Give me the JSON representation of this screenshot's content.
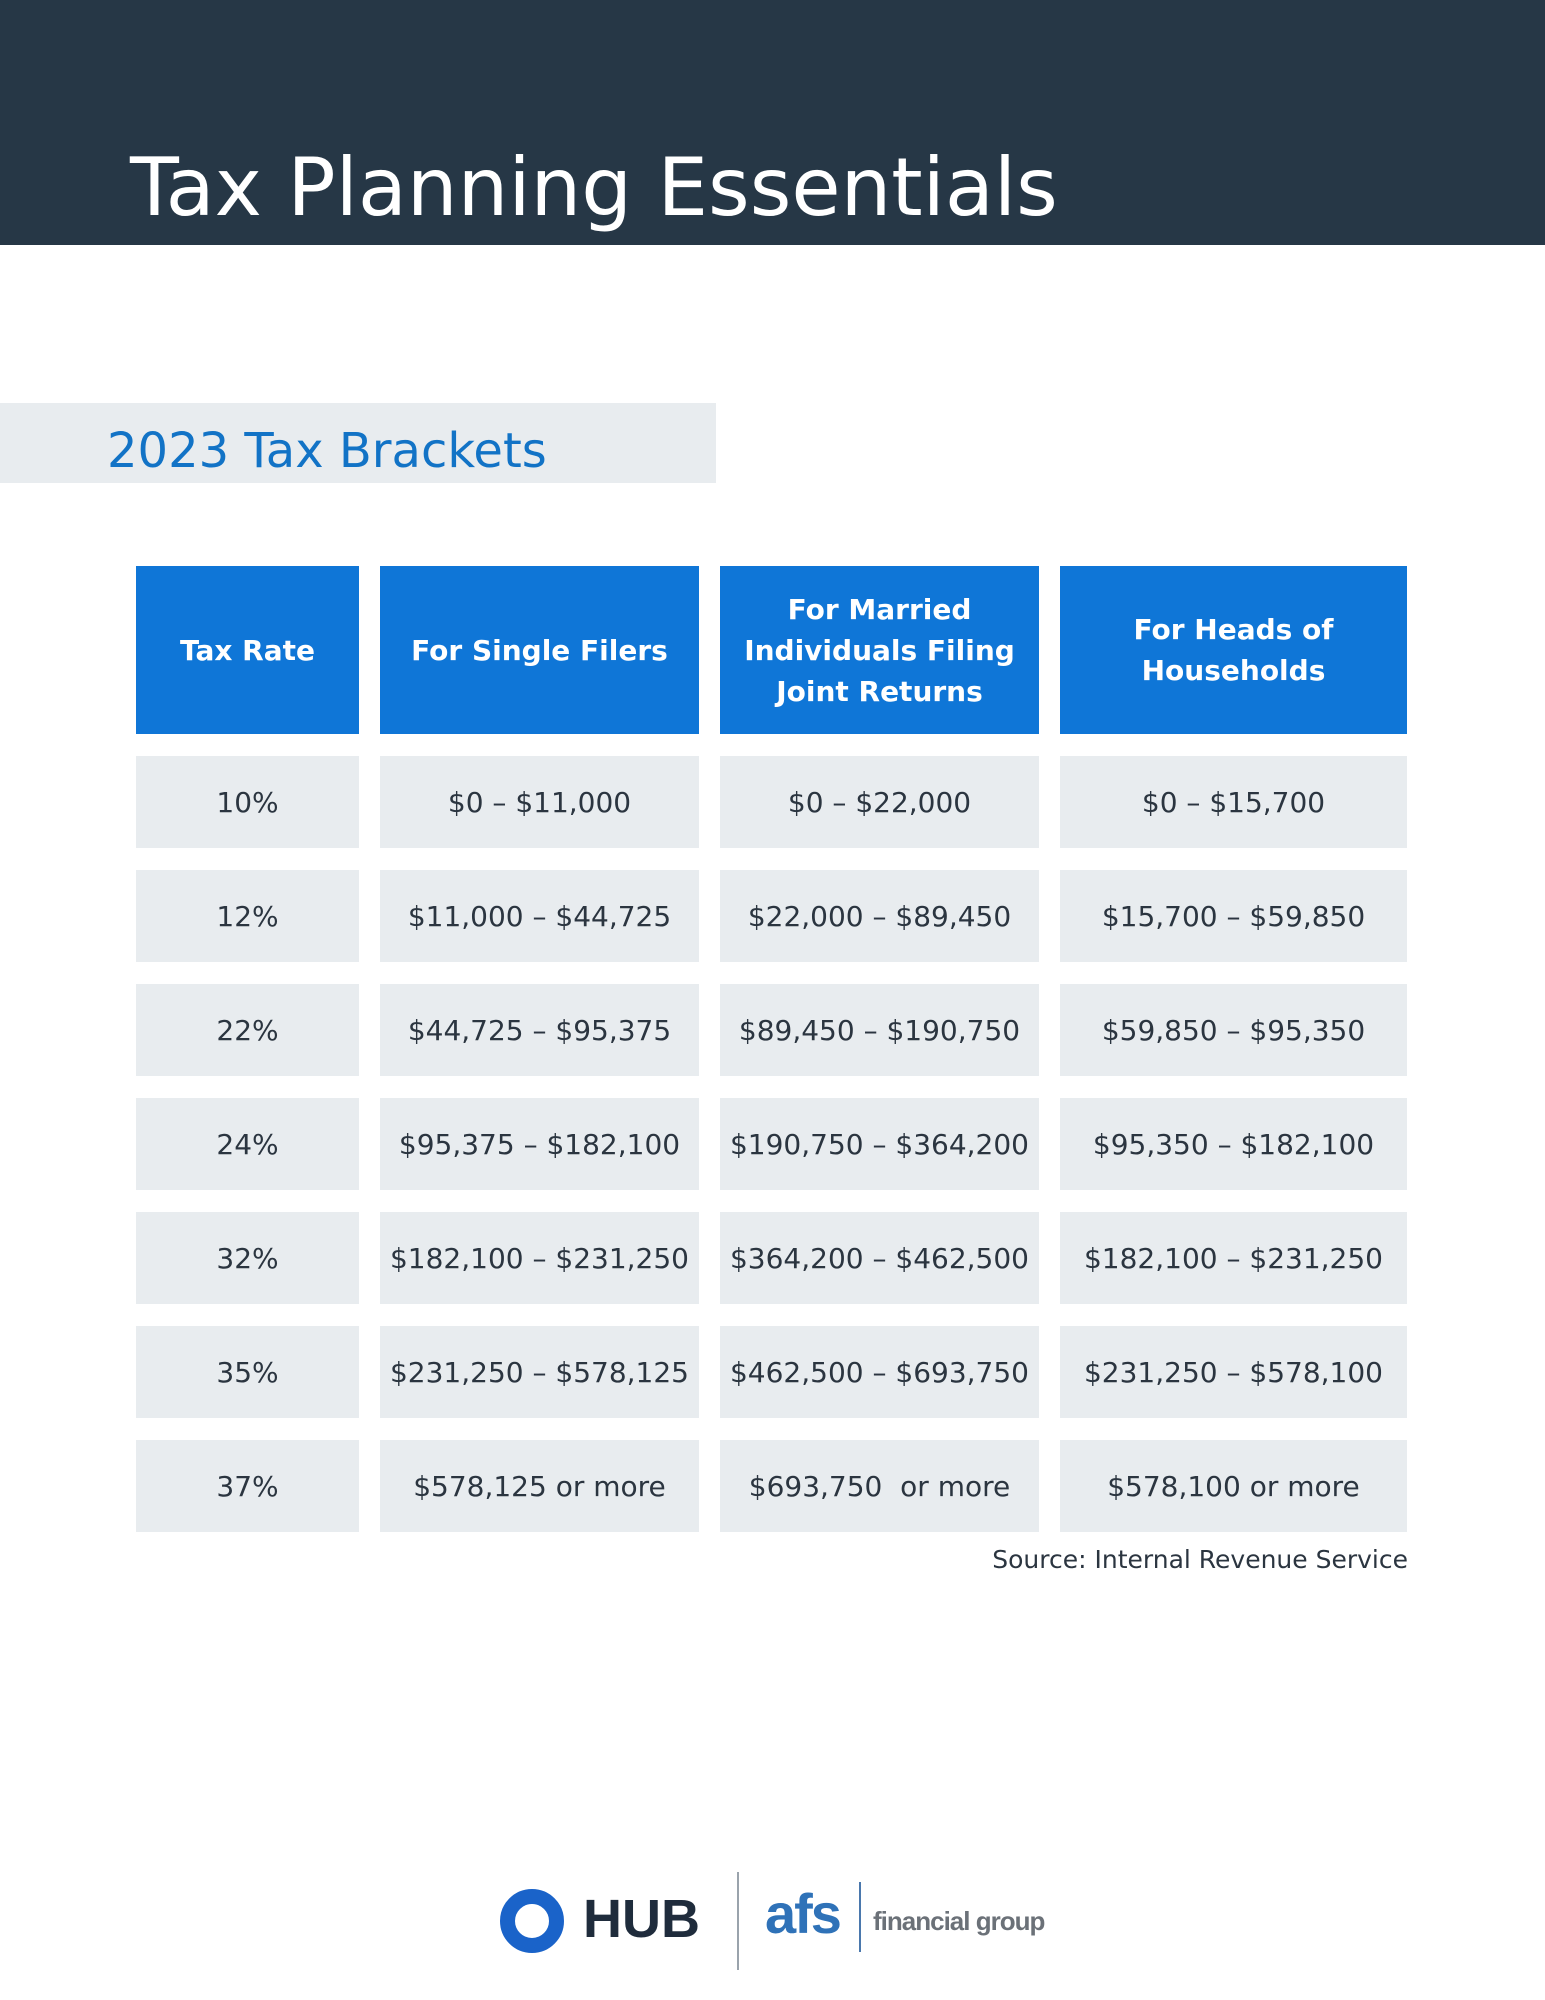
{
  "header": {
    "title": "Tax Planning Essentials"
  },
  "section": {
    "title": "2023 Tax Brackets"
  },
  "table": {
    "headers": [
      "Tax Rate",
      "For Single Filers",
      "For Married Individuals Filing Joint Returns",
      "For Heads of Households"
    ],
    "rows": [
      [
        "10%",
        "$0 – $11,000",
        "$0 – $22,000",
        "$0 – $15,700"
      ],
      [
        "12%",
        "$11,000 – $44,725",
        "$22,000 – $89,450",
        "$15,700 – $59,850"
      ],
      [
        "22%",
        "$44,725 – $95,375",
        "$89,450 – $190,750",
        "$59,850 – $95,350"
      ],
      [
        "24%",
        "$95,375 – $182,100",
        "$190,750 – $364,200",
        "$95,350 – $182,100"
      ],
      [
        "32%",
        "$182,100 – $231,250",
        "$364,200 – $462,500",
        "$182,100 – $231,250"
      ],
      [
        "35%",
        "$231,250 – $578,125",
        "$462,500 – $693,750",
        "$231,250 – $578,100"
      ],
      [
        "37%",
        "$578,125 or more",
        "$693,750  or more",
        "$578,100 or more"
      ]
    ]
  },
  "source": "Source: Internal Revenue Service",
  "logos": {
    "hub": "HUB",
    "afs": "afs",
    "afs_tagline": "financial group",
    "hub_ring_color": "#1a63c9"
  },
  "colors": {
    "header_band": "#263746",
    "table_header": "#0f76d7",
    "cell_background": "#e8ecef",
    "section_title": "#1273c6"
  }
}
